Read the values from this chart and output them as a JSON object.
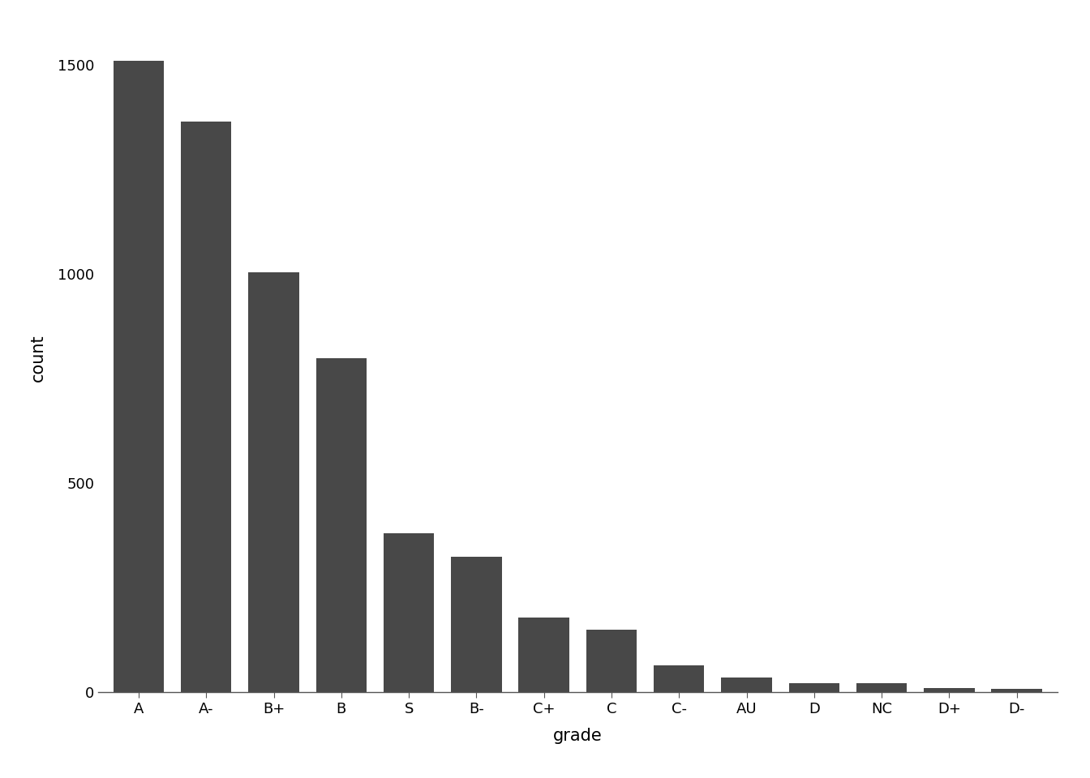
{
  "categories": [
    "A",
    "A-",
    "B+",
    "B",
    "S",
    "B-",
    "C+",
    "C",
    "C-",
    "AU",
    "D",
    "NC",
    "D+",
    "D-"
  ],
  "values": [
    1510,
    1365,
    1005,
    800,
    380,
    325,
    180,
    150,
    65,
    35,
    22,
    22,
    10,
    8
  ],
  "bar_color": "#484848",
  "title": "",
  "xlabel": "grade",
  "ylabel": "count",
  "ylim": [
    0,
    1600
  ],
  "yticks": [
    0,
    500,
    1000,
    1500
  ],
  "background_color": "#ffffff",
  "xlabel_fontsize": 15,
  "ylabel_fontsize": 15,
  "tick_fontsize": 13,
  "bar_width": 0.75,
  "figsize": [
    13.44,
    9.6
  ],
  "dpi": 100
}
